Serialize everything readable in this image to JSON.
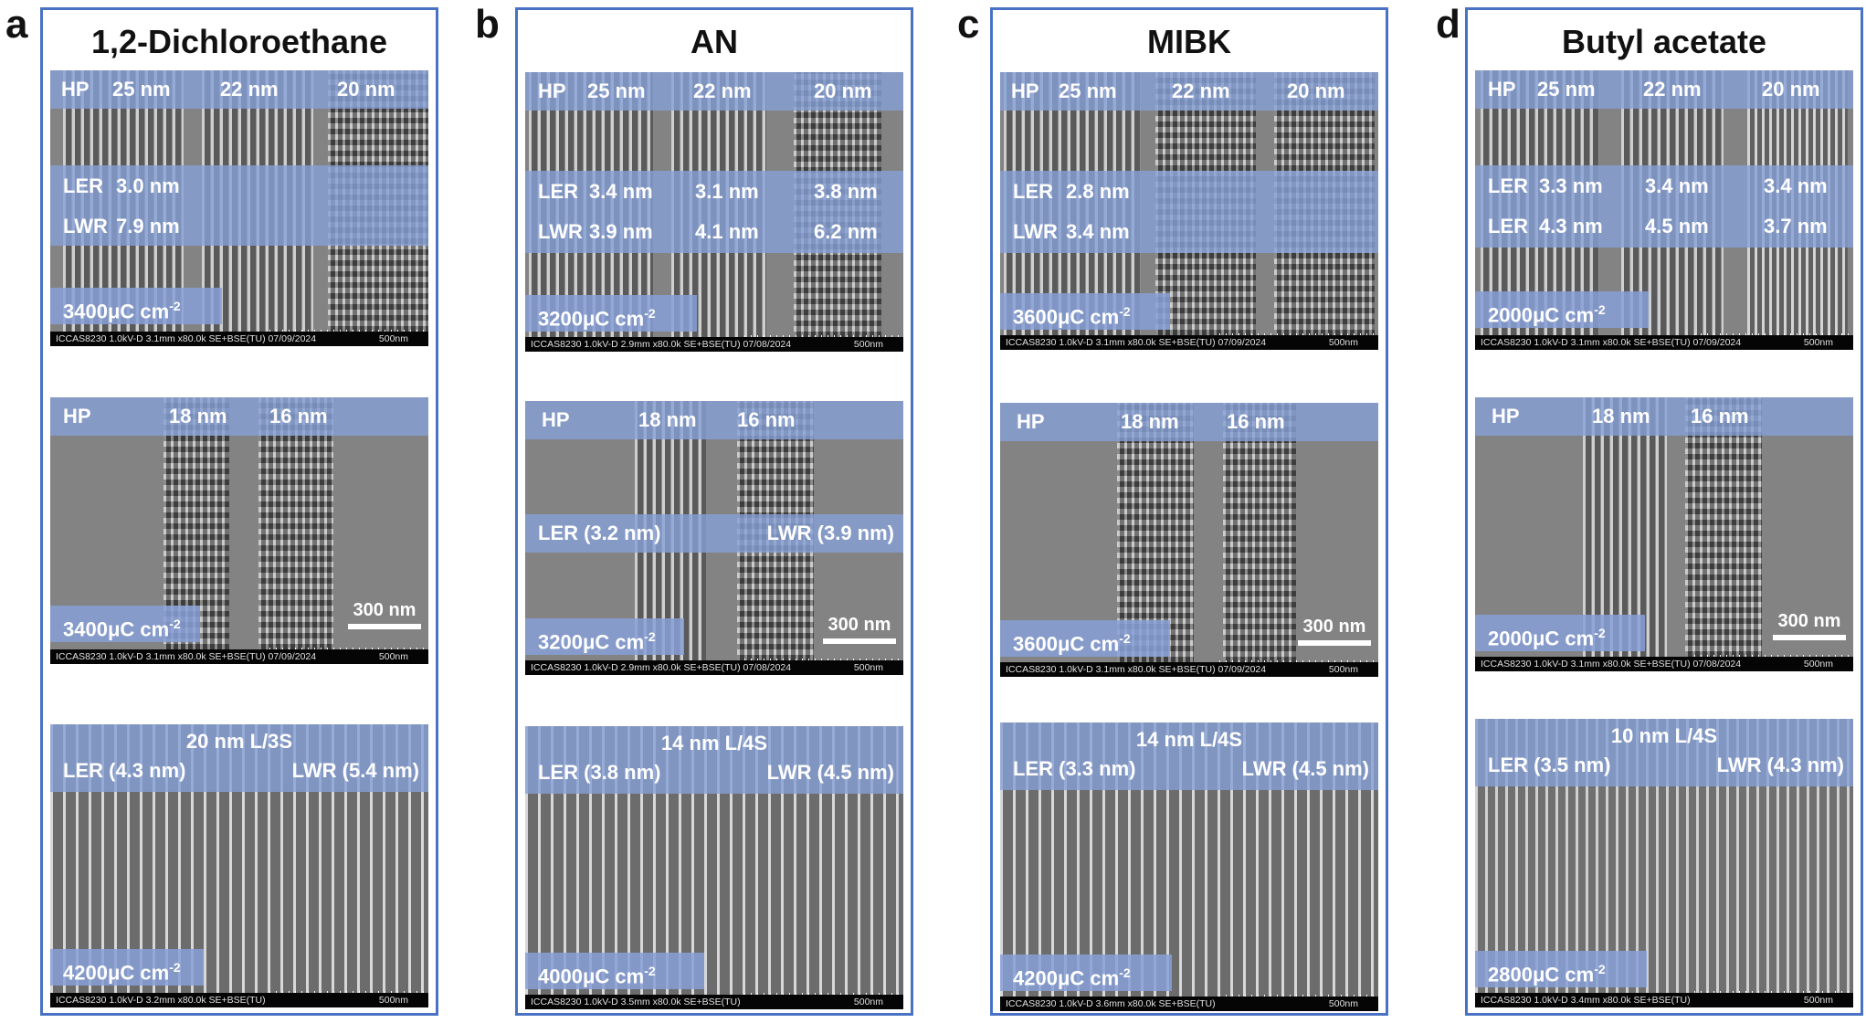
{
  "panels": [
    {
      "letter": "a",
      "title": "1,2-Dichloroethane",
      "top": {
        "hp": "HP",
        "p1": "25 nm",
        "p2": "22 nm",
        "p3": "20 nm",
        "ler_label": "LER",
        "ler1": "3.0 nm",
        "ler2": "",
        "ler3": "",
        "lwr_label": "LWR",
        "lwr1": "7.9 nm",
        "lwr2": "",
        "lwr3": "",
        "dose": "3400μC cm",
        "exp": "-2",
        "info": "ICCAS8230 1.0kV-D 3.1mm x80.0k SE+BSE(TU) 07/09/2024",
        "info_scale": "500nm"
      },
      "mid": {
        "hp": "HP",
        "p1": "18 nm",
        "p2": "16 nm",
        "ler": "",
        "lwr": "",
        "dose": "3400μC cm",
        "exp": "-2",
        "scale": "300 nm",
        "info": "ICCAS8230 1.0kV-D 3.1mm x80.0k SE+BSE(TU) 07/09/2024",
        "info_scale": "500nm"
      },
      "bot": {
        "title": "20 nm L/3S",
        "ler": "LER (4.3 nm)",
        "lwr": "LWR (5.4 nm)",
        "dose": "4200μC cm",
        "exp": "-2",
        "info": "ICCAS8230 1.0kV-D 3.2mm x80.0k SE+BSE(TU)",
        "info_scale": "500nm"
      }
    },
    {
      "letter": "b",
      "title": "AN",
      "top": {
        "hp": "HP",
        "p1": "25 nm",
        "p2": "22 nm",
        "p3": "20 nm",
        "ler_label": "LER",
        "ler1": "3.4 nm",
        "ler2": "3.1 nm",
        "ler3": "3.8 nm",
        "lwr_label": "LWR",
        "lwr1": "3.9 nm",
        "lwr2": "4.1 nm",
        "lwr3": "6.2 nm",
        "dose": "3200μC cm",
        "exp": "-2",
        "info": "ICCAS8230 1.0kV-D 2.9mm x80.0k SE+BSE(TU) 07/08/2024",
        "info_scale": "500nm"
      },
      "mid": {
        "hp": "HP",
        "p1": "18 nm",
        "p2": "16 nm",
        "ler": "LER (3.2 nm)",
        "lwr": "LWR (3.9 nm)",
        "dose": "3200μC cm",
        "exp": "-2",
        "scale": "300 nm",
        "info": "ICCAS8230 1.0kV-D 2.9mm x80.0k SE+BSE(TU) 07/08/2024",
        "info_scale": "500nm"
      },
      "bot": {
        "title": "14 nm L/4S",
        "ler": "LER (3.8 nm)",
        "lwr": "LWR (4.5 nm)",
        "dose": "4000μC cm",
        "exp": "-2",
        "info": "ICCAS8230 1.0kV-D 3.5mm x80.0k SE+BSE(TU)",
        "info_scale": "500nm"
      }
    },
    {
      "letter": "c",
      "title": "MIBK",
      "top": {
        "hp": "HP",
        "p1": "25 nm",
        "p2": "22 nm",
        "p3": "20 nm",
        "ler_label": "LER",
        "ler1": "2.8 nm",
        "ler2": "",
        "ler3": "",
        "lwr_label": "LWR",
        "lwr1": "3.4 nm",
        "lwr2": "",
        "lwr3": "",
        "dose": "3600μC cm",
        "exp": "-2",
        "info": "ICCAS8230 1.0kV-D 3.1mm x80.0k SE+BSE(TU) 07/09/2024",
        "info_scale": "500nm"
      },
      "mid": {
        "hp": "HP",
        "p1": "18 nm",
        "p2": "16 nm",
        "ler": "",
        "lwr": "",
        "dose": "3600μC cm",
        "exp": "-2",
        "scale": "300 nm",
        "info": "ICCAS8230 1.0kV-D 3.1mm x80.0k SE+BSE(TU) 07/09/2024",
        "info_scale": "500nm"
      },
      "bot": {
        "title": "14 nm L/4S",
        "ler": "LER (3.3 nm)",
        "lwr": "LWR (4.5 nm)",
        "dose": "4200μC cm",
        "exp": "-2",
        "info": "ICCAS8230 1.0kV-D 3.6mm x80.0k SE+BSE(TU)",
        "info_scale": "500nm"
      }
    },
    {
      "letter": "d",
      "title": "Butyl acetate",
      "top": {
        "hp": "HP",
        "p1": "25 nm",
        "p2": "22 nm",
        "p3": "20 nm",
        "ler_label": "LER",
        "ler1": "3.3 nm",
        "ler2": "3.4 nm",
        "ler3": "3.4 nm",
        "lwr_label": "LER",
        "lwr1": "4.3 nm",
        "lwr2": "4.5 nm",
        "lwr3": "3.7 nm",
        "dose": "2000μC cm",
        "exp": "-2",
        "info": "ICCAS8230 1.0kV-D 3.1mm x80.0k SE+BSE(TU) 07/09/2024",
        "info_scale": "500nm"
      },
      "mid": {
        "hp": "HP",
        "p1": "18 nm",
        "p2": "16 nm",
        "ler": "",
        "lwr": "",
        "dose": "2000μC cm",
        "exp": "-2",
        "scale": "300 nm",
        "info": "ICCAS8230 1.0kV-D 3.1mm x80.0k SE+BSE(TU) 07/08/2024",
        "info_scale": "500nm"
      },
      "bot": {
        "title": "10 nm L/4S",
        "ler": "LER (3.5 nm)",
        "lwr": "LWR (4.3 nm)",
        "dose": "2800μC cm",
        "exp": "-2",
        "info": "ICCAS8230 1.0kV-D 3.4mm x80.0k SE+BSE(TU)",
        "info_scale": "500nm"
      }
    }
  ]
}
